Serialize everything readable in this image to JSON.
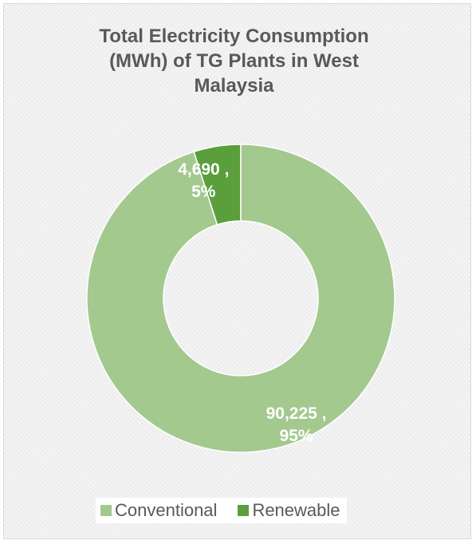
{
  "chart_data": {
    "type": "pie",
    "variant": "donut",
    "title": "Total Electricity Consumption (MWh) of TG Plants in West Malaysia",
    "title_lines": [
      "Total Electricity Consumption",
      "(MWh) of TG Plants in West",
      "Malaysia"
    ],
    "categories": [
      "Renewable",
      "Conventional"
    ],
    "values": [
      4690,
      90225
    ],
    "percents": [
      5,
      95
    ],
    "data_labels": [
      {
        "value": "4,690 ,",
        "percent": "5%"
      },
      {
        "value": "90,225 ,",
        "percent": "95%"
      }
    ],
    "colors": [
      "#5b9e3c",
      "#a3c98f"
    ],
    "legend": {
      "position": "bottom",
      "entries": [
        "Conventional",
        "Renewable"
      ],
      "colors": [
        "#a3c98f",
        "#5b9e3c"
      ]
    }
  }
}
